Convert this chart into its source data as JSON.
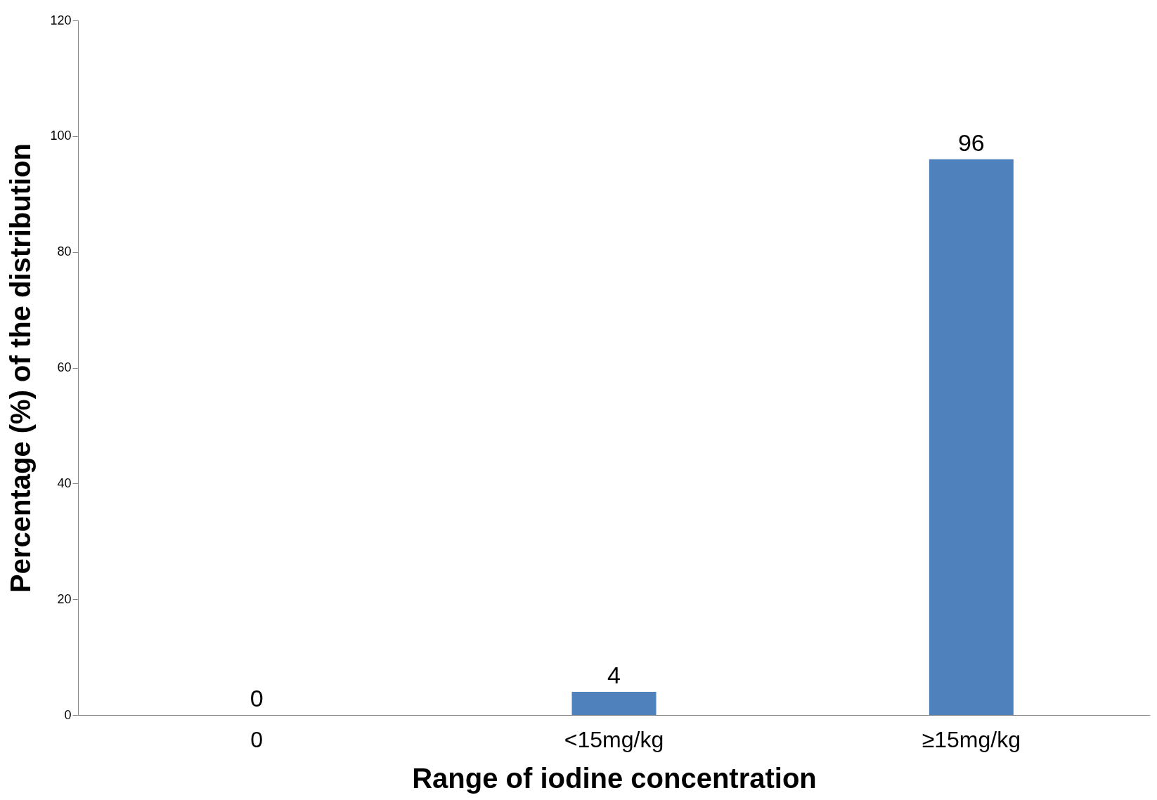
{
  "chart_data": {
    "type": "bar",
    "xlabel": "Range of iodine concentration",
    "ylabel": "Percentage (%) of the distribution",
    "categories": [
      "0",
      "<15mg/kg",
      "≥15mg/kg"
    ],
    "values": [
      0,
      4,
      96
    ],
    "color": "#4f81bd",
    "ylim": [
      0,
      120
    ],
    "yticks": [
      0,
      20,
      40,
      60,
      80,
      100,
      120
    ],
    "grid": false,
    "data_labels": true
  }
}
